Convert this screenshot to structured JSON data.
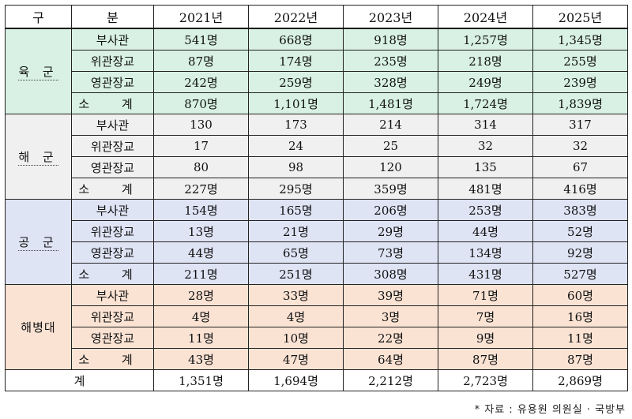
{
  "header": {
    "gu": "구",
    "bun": "분",
    "years": [
      "2021년",
      "2022년",
      "2023년",
      "2024년",
      "2025년"
    ]
  },
  "subtotal_label": "소 계",
  "branches": [
    {
      "name": "육 군",
      "color": "#d8f1e4",
      "rows": [
        {
          "label": "부사관",
          "values": [
            "541명",
            "668명",
            "918명",
            "1,257명",
            "1,345명"
          ]
        },
        {
          "label": "위관장교",
          "values": [
            "87명",
            "174명",
            "235명",
            "218명",
            "255명"
          ]
        },
        {
          "label": "영관장교",
          "values": [
            "242명",
            "259명",
            "328명",
            "249명",
            "239명"
          ]
        }
      ],
      "subtotal": [
        "870명",
        "1,101명",
        "1,481명",
        "1,724명",
        "1,839명"
      ]
    },
    {
      "name": "해 군",
      "color": "#f0f0f0",
      "rows": [
        {
          "label": "부사관",
          "values": [
            "130",
            "173",
            "214",
            "314",
            "317"
          ]
        },
        {
          "label": "위관장교",
          "values": [
            "17",
            "24",
            "25",
            "32",
            "32"
          ]
        },
        {
          "label": "영관장교",
          "values": [
            "80",
            "98",
            "120",
            "135",
            "67"
          ]
        }
      ],
      "subtotal": [
        "227명",
        "295명",
        "359명",
        "481명",
        "416명"
      ]
    },
    {
      "name": "공 군",
      "color": "#dfe4f5",
      "rows": [
        {
          "label": "부사관",
          "values": [
            "154명",
            "165명",
            "206명",
            "253명",
            "383명"
          ]
        },
        {
          "label": "위관장교",
          "values": [
            "13명",
            "21명",
            "29명",
            "44명",
            "52명"
          ]
        },
        {
          "label": "영관장교",
          "values": [
            "44명",
            "65명",
            "73명",
            "134명",
            "92명"
          ]
        }
      ],
      "subtotal": [
        "211명",
        "251명",
        "308명",
        "431명",
        "527명"
      ]
    },
    {
      "name": "해병대",
      "color": "#fbe3d4",
      "rows": [
        {
          "label": "부사관",
          "values": [
            "28명",
            "33명",
            "39명",
            "71명",
            "60명"
          ]
        },
        {
          "label": "위관장교",
          "values": [
            "4명",
            "4명",
            "3명",
            "7명",
            "16명"
          ]
        },
        {
          "label": "영관장교",
          "values": [
            "11명",
            "10명",
            "22명",
            "9명",
            "11명"
          ]
        }
      ],
      "subtotal": [
        "43명",
        "47명",
        "64명",
        "87명",
        "87명"
      ]
    }
  ],
  "total": {
    "label": "계",
    "values": [
      "1,351명",
      "1,694명",
      "2,212명",
      "2,723명",
      "2,869명"
    ]
  },
  "source": "* 자료 : 유용원 의원실 · 국방부"
}
